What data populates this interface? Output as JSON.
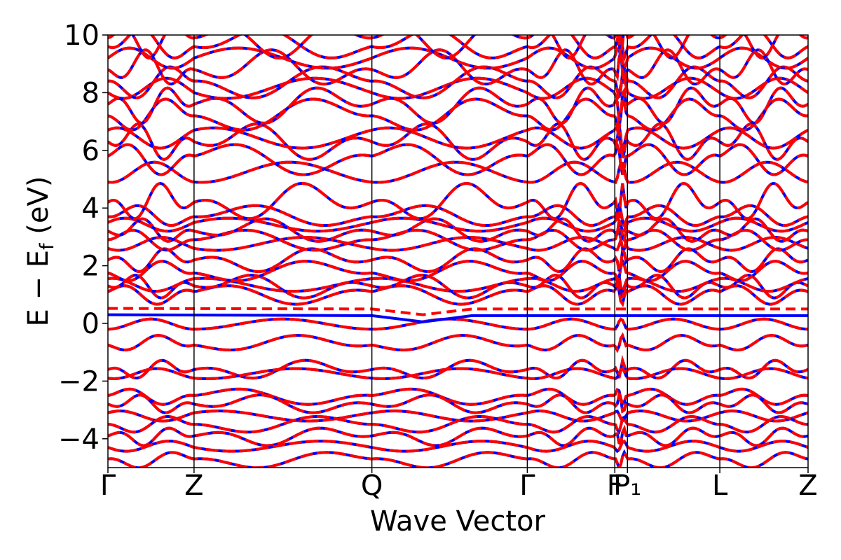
{
  "chart_data": {
    "type": "line",
    "title": "",
    "xlabel": "Wave Vector",
    "ylabel": "E − E_f (eV)",
    "ylabel_parts": {
      "main": "E − E",
      "sub": "f",
      "unit": " (eV)"
    },
    "ylim": [
      -5,
      10
    ],
    "xlim": [
      0,
      1
    ],
    "yticks": [
      -4,
      -2,
      0,
      2,
      4,
      6,
      8,
      10
    ],
    "ytick_labels": [
      "−4",
      "−2",
      "0",
      "2",
      "4",
      "6",
      "8",
      "10"
    ],
    "kpoints": [
      {
        "label": "Γ",
        "pos": 0.0
      },
      {
        "label": "Z",
        "pos": 0.123
      },
      {
        "label": "Q",
        "pos": 0.377
      },
      {
        "label": "Γ",
        "pos": 0.599
      },
      {
        "label": "F",
        "pos": 0.724
      },
      {
        "label": "P₁",
        "pos": 0.742
      },
      {
        "label": "L",
        "pos": 0.874
      },
      {
        "label": "Z",
        "pos": 1.0
      }
    ],
    "grid": false,
    "legend": "none",
    "series": [
      {
        "role": "spin-down-bands",
        "color": "#ff0000",
        "style": "dashed"
      },
      {
        "role": "spin-up-bands",
        "color": "#0000ff",
        "style": "solid"
      }
    ],
    "fermi_levels": [
      {
        "color": "#ff0000",
        "style": "dashed",
        "values": [
          [
            0,
            0.52
          ],
          [
            0.377,
            0.5
          ],
          [
            0.45,
            0.3
          ],
          [
            0.52,
            0.5
          ],
          [
            1.0,
            0.5
          ]
        ]
      },
      {
        "color": "#0000ff",
        "style": "solid",
        "values": [
          [
            0,
            0.3
          ],
          [
            0.377,
            0.27
          ],
          [
            0.45,
            0.05
          ],
          [
            0.52,
            0.27
          ],
          [
            1.0,
            0.27
          ]
        ]
      }
    ],
    "band_levels": {
      "valence": [
        -0.2,
        -0.75,
        -1.6,
        -1.9,
        -2.5,
        -2.8,
        -3.1,
        -3.5,
        -3.9,
        -4.3,
        -4.7
      ],
      "conduction_mid": [
        1.1,
        1.3,
        1.55,
        1.75,
        2.2,
        2.6,
        2.9,
        3.2,
        3.5,
        3.7
      ],
      "conduction_high": [
        4.2,
        4.9,
        5.8,
        6.3,
        6.7,
        7.2,
        7.6,
        8.0,
        8.4,
        8.8,
        9.2,
        9.6,
        9.9
      ]
    }
  }
}
